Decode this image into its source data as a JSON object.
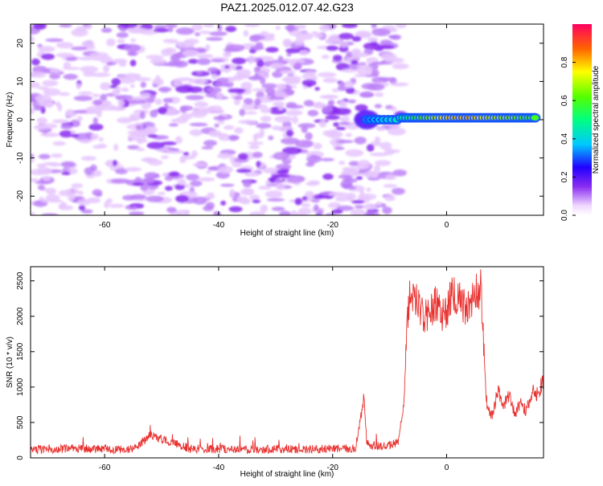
{
  "figure": {
    "title": "PAZ1.2025.012.07.42.G23"
  },
  "chart_data": [
    {
      "type": "heatmap",
      "xlabel": "Height of straight line (km)",
      "ylabel": "Frequency (Hz)",
      "xlim": [
        -73,
        17
      ],
      "ylim": [
        -25,
        25
      ],
      "xticks": [
        -60,
        -40,
        -20,
        0
      ],
      "yticks": [
        -20,
        -10,
        0,
        10,
        20
      ],
      "colorbar": {
        "label": "Normalized spectral amplitude",
        "range": [
          0,
          1
        ],
        "ticks": [
          "0.0",
          "0.2",
          "0.4",
          "0.6",
          "0.8"
        ]
      },
      "description_points": [
        {
          "x": -70,
          "y": 0,
          "amp": 0.1
        },
        {
          "x": -40,
          "y": 0,
          "amp": 0.1
        },
        {
          "x": -14,
          "y": 0,
          "amp": 0.2
        },
        {
          "x": -8,
          "y": 0.5,
          "amp": 0.45
        },
        {
          "x": -4,
          "y": 0.5,
          "amp": 0.7
        },
        {
          "x": 0,
          "y": 0.5,
          "amp": 0.95
        },
        {
          "x": 4,
          "y": 0.5,
          "amp": 1.0
        },
        {
          "x": 8,
          "y": 0.5,
          "amp": 0.85
        },
        {
          "x": 12,
          "y": 0.5,
          "amp": 0.75
        },
        {
          "x": 16,
          "y": 0.5,
          "amp": 0.6
        }
      ]
    },
    {
      "type": "line",
      "xlabel": "Height of straight line (km)",
      "ylabel": "SNR (10 * v/v)",
      "xlim": [
        -73,
        17
      ],
      "ylim": [
        0,
        2700
      ],
      "xticks": [
        -60,
        -40,
        -20,
        0
      ],
      "yticks": [
        0,
        500,
        1000,
        1500,
        2000,
        2500
      ],
      "color": "#e8312f",
      "series": [
        {
          "x": [
            -73,
            -65,
            -55,
            -52,
            -45,
            -35,
            -25,
            -16,
            -14.5,
            -14,
            -13.5,
            -12,
            -10,
            -8.5,
            -7.5,
            -7,
            -6.5,
            -6,
            -5,
            -4,
            -3,
            -2,
            -1,
            0,
            1,
            2,
            3,
            4,
            5,
            6,
            6.5,
            7,
            7.5,
            8,
            9,
            10,
            11,
            12,
            13,
            14,
            15,
            16,
            17
          ],
          "y": [
            120,
            130,
            120,
            320,
            130,
            120,
            125,
            130,
            850,
            200,
            180,
            170,
            180,
            220,
            800,
            1800,
            2250,
            2350,
            2150,
            2000,
            2050,
            2200,
            2000,
            2050,
            2350,
            2250,
            2150,
            2100,
            2300,
            2400,
            1600,
            800,
            650,
            600,
            950,
            750,
            900,
            600,
            800,
            650,
            950,
            900,
            1100
          ]
        }
      ]
    }
  ]
}
